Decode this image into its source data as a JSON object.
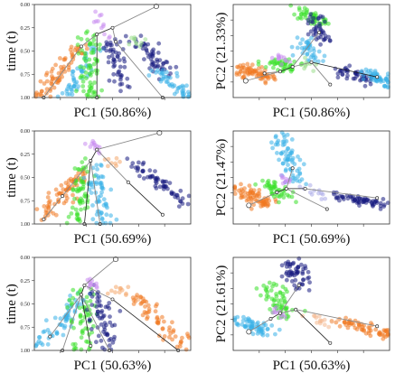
{
  "chart_data": [
    {
      "id": "r1-time",
      "type": "scatter",
      "row": 0,
      "col": 0,
      "xlabel": "PC1 (50.86%)",
      "ylabel": "time (t)",
      "ylim": [
        1.0,
        0.0
      ],
      "yticks": [
        0.0,
        0.25,
        0.5,
        0.75,
        1.0
      ],
      "ytick_labels": [
        "0.00",
        "0.25",
        "0.50",
        "0.75",
        "1.00"
      ],
      "clusters": [
        {
          "color": "#f07820",
          "x0": 0.3,
          "y0": 0.45,
          "x1": 0.04,
          "y1": 1.0,
          "n": 70,
          "spread": 0.035
        },
        {
          "color": "#39b0e8",
          "x0": 0.4,
          "y0": 0.45,
          "x1": 0.2,
          "y1": 1.0,
          "n": 50,
          "spread": 0.03
        },
        {
          "color": "#39e028",
          "x0": 0.36,
          "y0": 0.35,
          "x1": 0.36,
          "y1": 1.0,
          "n": 70,
          "spread": 0.04
        },
        {
          "color": "#151a80",
          "x0": 0.48,
          "y0": 0.4,
          "x1": 0.58,
          "y1": 0.9,
          "n": 50,
          "spread": 0.03
        },
        {
          "color": "#151a80",
          "x0": 0.64,
          "y0": 0.35,
          "x1": 0.88,
          "y1": 0.8,
          "n": 55,
          "spread": 0.03
        },
        {
          "color": "#39b0e8",
          "x0": 0.8,
          "y0": 0.7,
          "x1": 0.98,
          "y1": 1.0,
          "n": 45,
          "spread": 0.03
        },
        {
          "color": "#c88cf0",
          "x0": 0.4,
          "y0": 0.12,
          "x1": 0.48,
          "y1": 0.32,
          "n": 12,
          "spread": 0.025
        },
        {
          "color": "#9adf8c",
          "x0": 0.6,
          "y0": 0.35,
          "x1": 0.7,
          "y1": 0.45,
          "n": 10,
          "spread": 0.03
        }
      ],
      "tree_nodes": [
        [
          0.78,
          0.02
        ],
        [
          0.5,
          0.25
        ],
        [
          0.4,
          0.32
        ],
        [
          0.3,
          0.45
        ],
        [
          0.06,
          1.0
        ],
        [
          0.4,
          1.0
        ],
        [
          0.52,
          0.4
        ],
        [
          0.82,
          1.0
        ]
      ],
      "tree_edges": [
        [
          0,
          1
        ],
        [
          1,
          2
        ],
        [
          2,
          3
        ],
        [
          3,
          4
        ],
        [
          2,
          5
        ],
        [
          1,
          6
        ],
        [
          6,
          7
        ]
      ]
    },
    {
      "id": "r1-pc",
      "type": "scatter",
      "row": 0,
      "col": 1,
      "xlabel": "PC1 (50.86%)",
      "ylabel": "PC2 (21.33%)",
      "clusters": [
        {
          "color": "#39e028",
          "x0": 0.42,
          "y0": 0.05,
          "x1": 0.55,
          "y1": 0.2,
          "n": 45,
          "spread": 0.035
        },
        {
          "color": "#151a80",
          "x0": 0.52,
          "y0": 0.12,
          "x1": 0.58,
          "y1": 0.4,
          "n": 40,
          "spread": 0.03
        },
        {
          "color": "#39b0e8",
          "x0": 0.44,
          "y0": 0.35,
          "x1": 0.52,
          "y1": 0.62,
          "n": 40,
          "spread": 0.03
        },
        {
          "color": "#f07820",
          "x0": 0.03,
          "y0": 0.7,
          "x1": 0.25,
          "y1": 0.8,
          "n": 70,
          "spread": 0.04
        },
        {
          "color": "#39e028",
          "x0": 0.22,
          "y0": 0.62,
          "x1": 0.4,
          "y1": 0.68,
          "n": 45,
          "spread": 0.035
        },
        {
          "color": "#151a80",
          "x0": 0.68,
          "y0": 0.72,
          "x1": 0.88,
          "y1": 0.8,
          "n": 45,
          "spread": 0.03
        },
        {
          "color": "#39b0e8",
          "x0": 0.86,
          "y0": 0.72,
          "x1": 0.98,
          "y1": 0.85,
          "n": 50,
          "spread": 0.03
        },
        {
          "color": "#c88cf0",
          "x0": 0.28,
          "y0": 0.55,
          "x1": 0.34,
          "y1": 0.62,
          "n": 12,
          "spread": 0.02
        },
        {
          "color": "#9adf8c",
          "x0": 0.42,
          "y0": 0.62,
          "x1": 0.5,
          "y1": 0.66,
          "n": 10,
          "spread": 0.03
        }
      ],
      "tree_nodes": [
        [
          0.08,
          0.82
        ],
        [
          0.3,
          0.72
        ],
        [
          0.38,
          0.67
        ],
        [
          0.5,
          0.62
        ],
        [
          0.62,
          0.86
        ],
        [
          0.92,
          0.78
        ],
        [
          0.55,
          0.3
        ],
        [
          0.2,
          0.74
        ]
      ],
      "tree_edges": [
        [
          0,
          1
        ],
        [
          1,
          2
        ],
        [
          2,
          3
        ],
        [
          3,
          4
        ],
        [
          3,
          5
        ],
        [
          2,
          6
        ],
        [
          1,
          7
        ]
      ]
    },
    {
      "id": "r2-time",
      "type": "scatter",
      "row": 1,
      "col": 0,
      "xlabel": "PC1 (50.69%)",
      "ylabel": "time (t)",
      "ylim": [
        1.0,
        0.0
      ],
      "yticks": [
        0.0,
        0.25,
        0.5,
        0.75,
        1.0
      ],
      "ytick_labels": [
        "0.00",
        "0.25",
        "0.50",
        "0.75",
        "1.00"
      ],
      "clusters": [
        {
          "color": "#f07820",
          "x0": 0.3,
          "y0": 0.45,
          "x1": 0.04,
          "y1": 0.95,
          "n": 70,
          "spread": 0.035
        },
        {
          "color": "#39e028",
          "x0": 0.32,
          "y0": 0.35,
          "x1": 0.26,
          "y1": 1.0,
          "n": 60,
          "spread": 0.035
        },
        {
          "color": "#39b0e8",
          "x0": 0.38,
          "y0": 0.35,
          "x1": 0.44,
          "y1": 1.0,
          "n": 60,
          "spread": 0.035
        },
        {
          "color": "#151a80",
          "x0": 0.64,
          "y0": 0.35,
          "x1": 0.96,
          "y1": 0.8,
          "n": 60,
          "spread": 0.03
        },
        {
          "color": "#c88cf0",
          "x0": 0.36,
          "y0": 0.1,
          "x1": 0.42,
          "y1": 0.22,
          "n": 12,
          "spread": 0.02
        },
        {
          "color": "#f4a86c",
          "x0": 0.48,
          "y0": 0.3,
          "x1": 0.54,
          "y1": 0.36,
          "n": 8,
          "spread": 0.025
        }
      ],
      "tree_nodes": [
        [
          0.8,
          0.02
        ],
        [
          0.4,
          0.2
        ],
        [
          0.36,
          0.32
        ],
        [
          0.18,
          0.7
        ],
        [
          0.06,
          0.95
        ],
        [
          0.32,
          1.0
        ],
        [
          0.42,
          1.0
        ],
        [
          0.6,
          0.55
        ],
        [
          0.82,
          0.9
        ]
      ],
      "tree_edges": [
        [
          0,
          1
        ],
        [
          1,
          2
        ],
        [
          2,
          3
        ],
        [
          3,
          4
        ],
        [
          2,
          5
        ],
        [
          2,
          6
        ],
        [
          1,
          7
        ],
        [
          7,
          8
        ]
      ]
    },
    {
      "id": "r2-pc",
      "type": "scatter",
      "row": 1,
      "col": 1,
      "xlabel": "PC1 (50.69%)",
      "ylabel": "PC2 (21.47%)",
      "clusters": [
        {
          "color": "#39b0e8",
          "x0": 0.32,
          "y0": 0.05,
          "x1": 0.4,
          "y1": 0.55,
          "n": 70,
          "spread": 0.04
        },
        {
          "color": "#f07820",
          "x0": 0.03,
          "y0": 0.62,
          "x1": 0.22,
          "y1": 0.78,
          "n": 70,
          "spread": 0.04
        },
        {
          "color": "#39e028",
          "x0": 0.22,
          "y0": 0.55,
          "x1": 0.34,
          "y1": 0.72,
          "n": 45,
          "spread": 0.035
        },
        {
          "color": "#151a80",
          "x0": 0.66,
          "y0": 0.7,
          "x1": 0.97,
          "y1": 0.8,
          "n": 60,
          "spread": 0.03
        },
        {
          "color": "#a9a9e8",
          "x0": 0.48,
          "y0": 0.62,
          "x1": 0.62,
          "y1": 0.72,
          "n": 12,
          "spread": 0.03
        },
        {
          "color": "#c88cf0",
          "x0": 0.3,
          "y0": 0.48,
          "x1": 0.36,
          "y1": 0.56,
          "n": 10,
          "spread": 0.02
        }
      ],
      "tree_nodes": [
        [
          0.1,
          0.8
        ],
        [
          0.28,
          0.66
        ],
        [
          0.34,
          0.62
        ],
        [
          0.38,
          0.4
        ],
        [
          0.6,
          0.84
        ],
        [
          0.92,
          0.72
        ],
        [
          0.46,
          0.62
        ]
      ],
      "tree_edges": [
        [
          0,
          1
        ],
        [
          1,
          2
        ],
        [
          2,
          3
        ],
        [
          2,
          4
        ],
        [
          2,
          6
        ],
        [
          6,
          5
        ]
      ]
    },
    {
      "id": "r3-time",
      "type": "scatter",
      "row": 2,
      "col": 0,
      "xlabel": "PC1 (50.63%)",
      "ylabel": "time (t)",
      "ylim": [
        1.0,
        0.0
      ],
      "yticks": [
        0.0,
        0.25,
        0.5,
        0.75,
        1.0
      ],
      "ytick_labels": [
        "0.00",
        "0.25",
        "0.50",
        "0.75",
        "1.00"
      ],
      "clusters": [
        {
          "color": "#39b0e8",
          "x0": 0.3,
          "y0": 0.45,
          "x1": 0.04,
          "y1": 0.95,
          "n": 60,
          "spread": 0.035
        },
        {
          "color": "#39e028",
          "x0": 0.32,
          "y0": 0.35,
          "x1": 0.3,
          "y1": 1.0,
          "n": 60,
          "spread": 0.04
        },
        {
          "color": "#151a80",
          "x0": 0.4,
          "y0": 0.35,
          "x1": 0.48,
          "y1": 1.0,
          "n": 60,
          "spread": 0.035
        },
        {
          "color": "#f07820",
          "x0": 0.62,
          "y0": 0.4,
          "x1": 0.96,
          "y1": 0.95,
          "n": 60,
          "spread": 0.035
        },
        {
          "color": "#c88cf0",
          "x0": 0.32,
          "y0": 0.2,
          "x1": 0.38,
          "y1": 0.32,
          "n": 12,
          "spread": 0.02
        },
        {
          "color": "#f4a86c",
          "x0": 0.5,
          "y0": 0.35,
          "x1": 0.62,
          "y1": 0.4,
          "n": 12,
          "spread": 0.03
        }
      ],
      "tree_nodes": [
        [
          0.52,
          0.02
        ],
        [
          0.32,
          0.3
        ],
        [
          0.3,
          0.4
        ],
        [
          0.1,
          0.85
        ],
        [
          0.18,
          1.0
        ],
        [
          0.36,
          0.95
        ],
        [
          0.48,
          1.0
        ],
        [
          0.5,
          0.45
        ],
        [
          0.92,
          1.0
        ]
      ],
      "tree_edges": [
        [
          0,
          1
        ],
        [
          1,
          2
        ],
        [
          2,
          3
        ],
        [
          2,
          4
        ],
        [
          2,
          5
        ],
        [
          2,
          6
        ],
        [
          1,
          7
        ],
        [
          7,
          8
        ]
      ]
    },
    {
      "id": "r3-pc",
      "type": "scatter",
      "row": 2,
      "col": 1,
      "xlabel": "PC1 (50.63%)",
      "ylabel": "PC2 (21.61%)",
      "clusters": [
        {
          "color": "#151a80",
          "x0": 0.36,
          "y0": 0.05,
          "x1": 0.46,
          "y1": 0.32,
          "n": 55,
          "spread": 0.04
        },
        {
          "color": "#39e028",
          "x0": 0.22,
          "y0": 0.3,
          "x1": 0.34,
          "y1": 0.62,
          "n": 60,
          "spread": 0.04
        },
        {
          "color": "#39b0e8",
          "x0": 0.03,
          "y0": 0.65,
          "x1": 0.22,
          "y1": 0.82,
          "n": 60,
          "spread": 0.035
        },
        {
          "color": "#f07820",
          "x0": 0.66,
          "y0": 0.68,
          "x1": 0.98,
          "y1": 0.82,
          "n": 60,
          "spread": 0.035
        },
        {
          "color": "#f4b890",
          "x0": 0.48,
          "y0": 0.62,
          "x1": 0.66,
          "y1": 0.72,
          "n": 15,
          "spread": 0.03
        },
        {
          "color": "#c88cf0",
          "x0": 0.26,
          "y0": 0.55,
          "x1": 0.32,
          "y1": 0.62,
          "n": 10,
          "spread": 0.02
        }
      ],
      "tree_nodes": [
        [
          0.1,
          0.8
        ],
        [
          0.24,
          0.66
        ],
        [
          0.3,
          0.6
        ],
        [
          0.42,
          0.3
        ],
        [
          0.4,
          0.56
        ],
        [
          0.62,
          0.92
        ],
        [
          0.92,
          0.74
        ]
      ],
      "tree_edges": [
        [
          0,
          1
        ],
        [
          1,
          2
        ],
        [
          2,
          3
        ],
        [
          2,
          4
        ],
        [
          4,
          5
        ],
        [
          4,
          6
        ]
      ]
    }
  ]
}
